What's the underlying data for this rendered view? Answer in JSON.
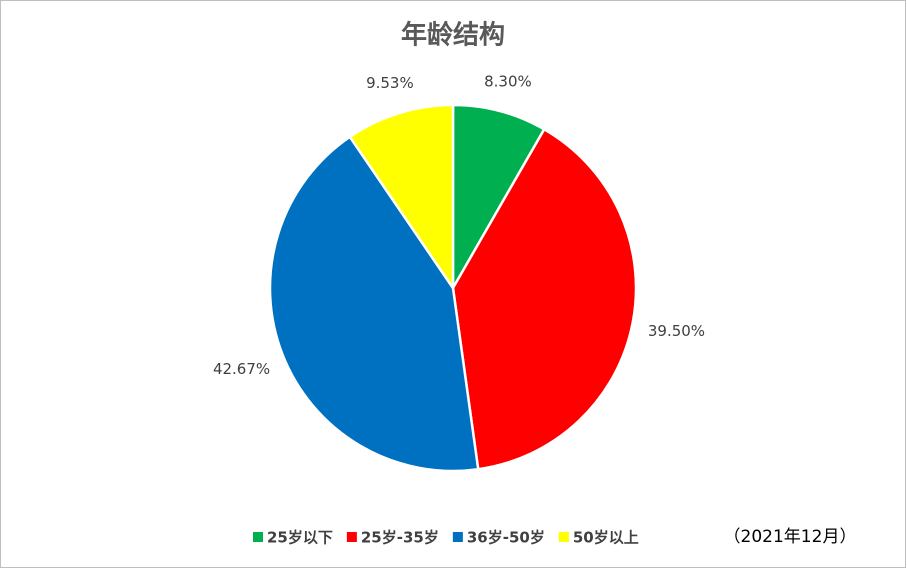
{
  "chart_data": {
    "type": "pie",
    "title": "年龄结构",
    "categories": [
      "25岁以下",
      "25岁-35岁",
      "36岁-50岁",
      "50岁以上"
    ],
    "values": [
      8.3,
      39.5,
      42.67,
      9.53
    ],
    "value_labels": [
      "8.30%",
      "39.50%",
      "42.67%",
      "9.53%"
    ],
    "colors": [
      "#00b050",
      "#ff0000",
      "#0070c0",
      "#ffff00"
    ],
    "annotation": "（2021年12月）",
    "legend": "bottom"
  }
}
